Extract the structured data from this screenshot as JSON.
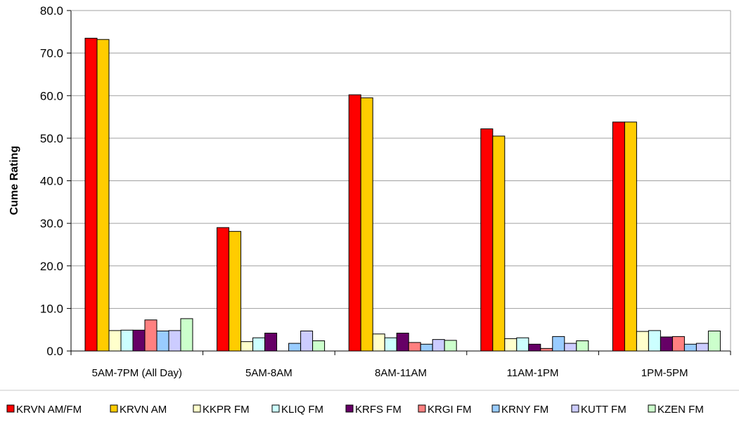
{
  "chart_data": {
    "type": "bar",
    "title": "",
    "xlabel": "",
    "ylabel": "Cume Rating",
    "ylim": [
      0,
      80
    ],
    "y_ticks": [
      "0.0",
      "10.0",
      "20.0",
      "30.0",
      "40.0",
      "50.0",
      "60.0",
      "70.0",
      "80.0"
    ],
    "grid": true,
    "legend_position": "bottom",
    "categories": [
      "5AM-7PM (All Day)",
      "5AM-8AM",
      "8AM-11AM",
      "11AM-1PM",
      "1PM-5PM"
    ],
    "series": [
      {
        "name": "KRVN AM/FM",
        "color": "#ff0000",
        "values": [
          73.5,
          29.0,
          60.2,
          52.2,
          53.8
        ]
      },
      {
        "name": "KRVN AM",
        "color": "#ffcc00",
        "values": [
          73.2,
          28.1,
          59.5,
          50.5,
          53.8
        ]
      },
      {
        "name": "KKPR FM",
        "color": "#ffffcc",
        "values": [
          4.8,
          2.2,
          4.0,
          2.9,
          4.6
        ]
      },
      {
        "name": "KLIQ FM",
        "color": "#ccffff",
        "values": [
          4.9,
          3.1,
          3.1,
          3.1,
          4.8
        ]
      },
      {
        "name": "KRFS FM",
        "color": "#660066",
        "values": [
          4.9,
          4.2,
          4.2,
          1.6,
          3.3
        ]
      },
      {
        "name": "KRGI FM",
        "color": "#ff8080",
        "values": [
          7.3,
          0.0,
          2.0,
          0.6,
          3.4
        ]
      },
      {
        "name": "KRNY FM",
        "color": "#99ccff",
        "values": [
          4.7,
          1.8,
          1.6,
          3.4,
          1.6
        ]
      },
      {
        "name": "KUTT FM",
        "color": "#ccccff",
        "values": [
          4.8,
          4.7,
          2.7,
          1.8,
          1.8
        ]
      },
      {
        "name": "KZEN FM",
        "color": "#ccffcc",
        "values": [
          7.6,
          2.4,
          2.5,
          2.4,
          4.7
        ]
      }
    ]
  }
}
